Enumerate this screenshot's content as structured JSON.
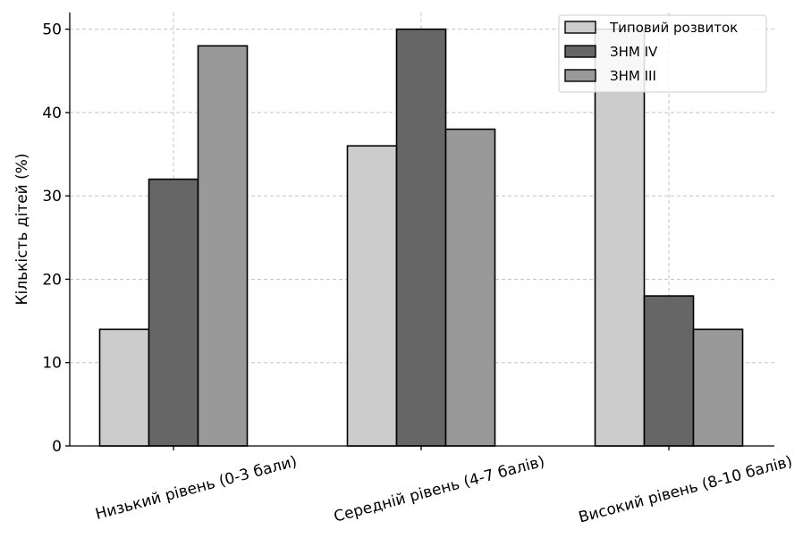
{
  "chart_data": {
    "type": "bar",
    "title": "",
    "xlabel": "",
    "ylabel": "Кількість дітей (%)",
    "ylim": [
      0,
      52
    ],
    "yticks": [
      0,
      10,
      20,
      30,
      40,
      50
    ],
    "grid": true,
    "legend_position": "top-right",
    "categories": [
      "Низький рівень (0-3 бали)",
      "Середній рівень (4-7 балів)",
      "Високий рівень (8-10 балів)"
    ],
    "series": [
      {
        "name": "Типовий розвиток",
        "color": "#cccccc",
        "values": [
          14,
          36,
          50
        ]
      },
      {
        "name": "ЗНМ IV",
        "color": "#666666",
        "values": [
          32,
          50,
          18
        ]
      },
      {
        "name": "ЗНМ III",
        "color": "#999999",
        "values": [
          48,
          38,
          14
        ]
      }
    ]
  }
}
